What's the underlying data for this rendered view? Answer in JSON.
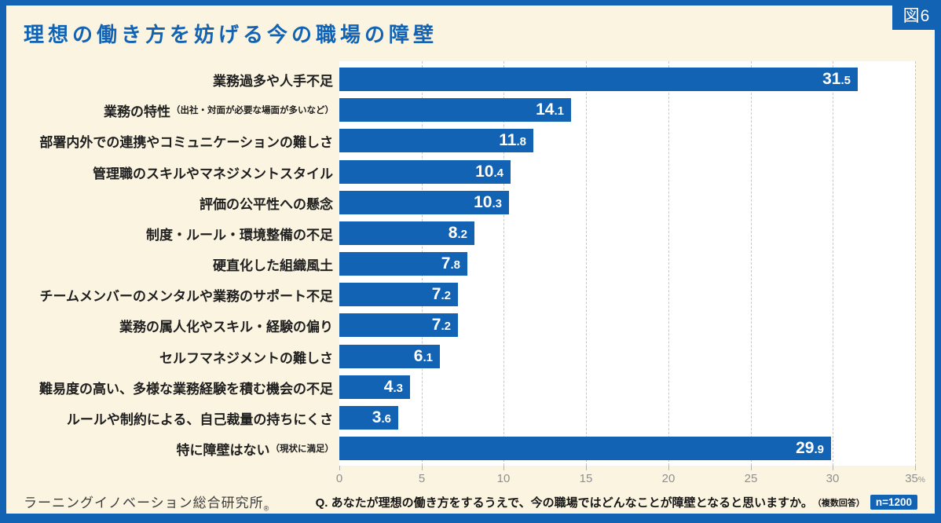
{
  "figure": {
    "tag": "図6"
  },
  "title": "理想の働き方を妨げる今の職場の障壁",
  "chart_data": {
    "type": "bar",
    "orientation": "horizontal",
    "value_unit": "%",
    "xlim": [
      0,
      35
    ],
    "x_tick_values": [
      0,
      5,
      10,
      15,
      20,
      25,
      30,
      35
    ],
    "x_tick_labels": [
      "0",
      "5",
      "10",
      "15",
      "20",
      "25",
      "30",
      "35"
    ],
    "x_axis_unit_suffix": "%",
    "grid": "vertical-dashed",
    "bar_color": "#1263b4",
    "bars": [
      {
        "label": "業務過多や人手不足",
        "note": "",
        "value": 31.5,
        "display_int": "31",
        "display_dec": ".5"
      },
      {
        "label": "業務の特性",
        "note": "（出社・対面が必要な場面が多いなど）",
        "value": 14.1,
        "display_int": "14",
        "display_dec": ".1"
      },
      {
        "label": "部署内外での連携やコミュニケーションの難しさ",
        "note": "",
        "value": 11.8,
        "display_int": "11",
        "display_dec": ".8"
      },
      {
        "label": "管理職のスキルやマネジメントスタイル",
        "note": "",
        "value": 10.4,
        "display_int": "10",
        "display_dec": ".4"
      },
      {
        "label": "評価の公平性への懸念",
        "note": "",
        "value": 10.3,
        "display_int": "10",
        "display_dec": ".3"
      },
      {
        "label": "制度・ルール・環境整備の不足",
        "note": "",
        "value": 8.2,
        "display_int": "8",
        "display_dec": ".2"
      },
      {
        "label": "硬直化した組織風土",
        "note": "",
        "value": 7.8,
        "display_int": "7",
        "display_dec": ".8"
      },
      {
        "label": "チームメンバーのメンタルや業務のサポート不足",
        "note": "",
        "value": 7.2,
        "display_int": "7",
        "display_dec": ".2"
      },
      {
        "label": "業務の属人化やスキル・経験の偏り",
        "note": "",
        "value": 7.2,
        "display_int": "7",
        "display_dec": ".2"
      },
      {
        "label": "セルフマネジメントの難しさ",
        "note": "",
        "value": 6.1,
        "display_int": "6",
        "display_dec": ".1"
      },
      {
        "label": "難易度の高い、多様な業務経験を積む機会の不足",
        "note": "",
        "value": 4.3,
        "display_int": "4",
        "display_dec": ".3"
      },
      {
        "label": "ルールや制約による、自己裁量の持ちにくさ",
        "note": "",
        "value": 3.6,
        "display_int": "3",
        "display_dec": ".6"
      },
      {
        "label": "特に障壁はない",
        "note": "（現状に満足）",
        "value": 29.9,
        "display_int": "29",
        "display_dec": ".9"
      }
    ]
  },
  "footer": {
    "source": "ラーニングイノベーション総合研究所",
    "source_mark": "®",
    "question": "Q. あなたが理想の働き方をするうえで、今の職場ではどんなことが障壁となると思いますか。",
    "question_note": "（複数回答）",
    "sample_size": "n=1200"
  },
  "colors": {
    "accent_blue": "#1263b4",
    "background_cream": "#fbf4e1",
    "plot_background": "#ffffff",
    "axis_text": "#8f8f8f",
    "gridline": "#c6c6c6"
  }
}
